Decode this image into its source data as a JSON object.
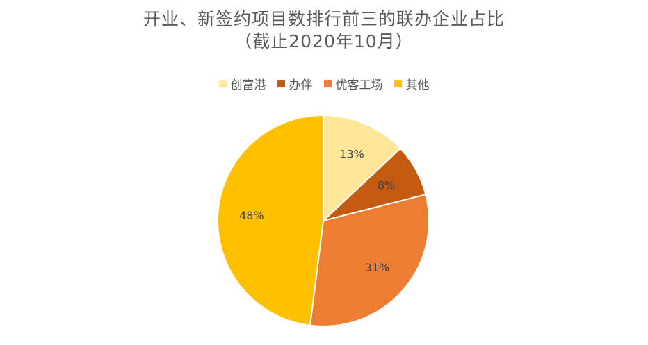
{
  "chart_data": {
    "type": "pie",
    "title": "开业、新签约项目数排行前三的联办企业占比",
    "subtitle": "（截止2020年10月）",
    "legend_position": "top",
    "slices": [
      {
        "name": "创富港",
        "value": 13,
        "label": "13%",
        "color": "#FFE699"
      },
      {
        "name": "办伴",
        "value": 8,
        "label": "8%",
        "color": "#C55A11"
      },
      {
        "name": "优客工场",
        "value": 31,
        "label": "31%",
        "color": "#ED7D31"
      },
      {
        "name": "其他",
        "value": 48,
        "label": "48%",
        "color": "#FFC000"
      }
    ]
  }
}
